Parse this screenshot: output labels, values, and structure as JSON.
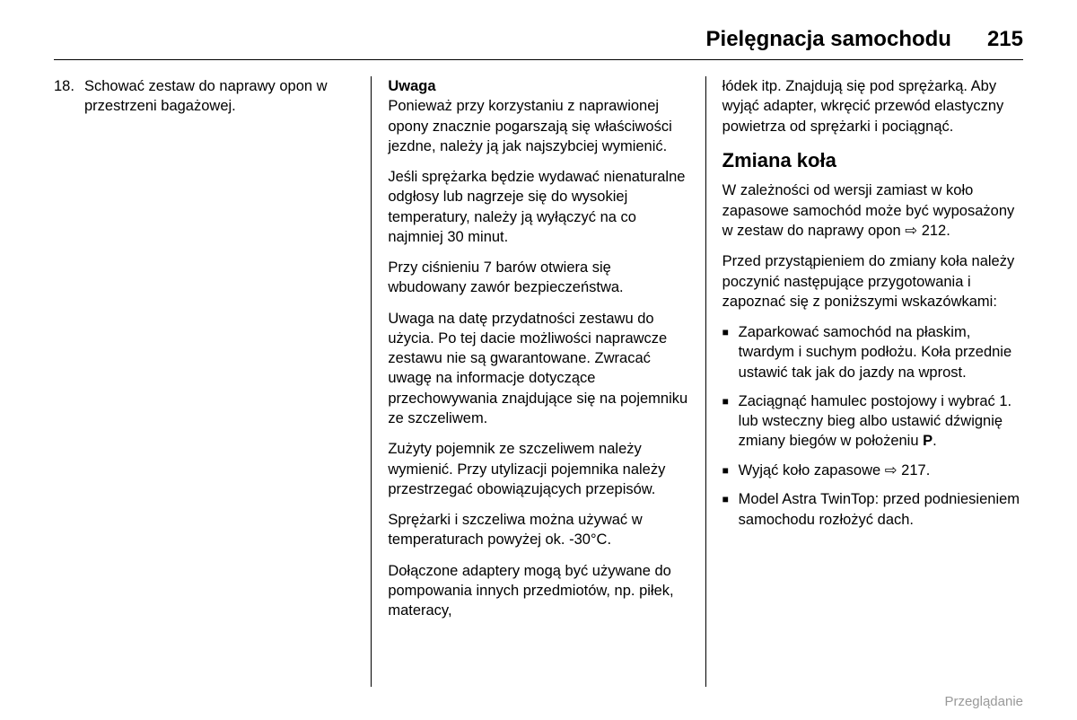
{
  "header": {
    "title": "Pielęgnacja samochodu",
    "page_number": "215"
  },
  "col1": {
    "item_number": "18.",
    "item_text": "Schować zestaw do naprawy opon w przestrzeni bagażowej."
  },
  "col2": {
    "note_label": "Uwaga",
    "p1": "Ponieważ przy korzystaniu z naprawionej opony znacznie pogarszają się właściwości jezdne, należy ją jak najszybciej wymienić.",
    "p2": "Jeśli sprężarka będzie wydawać nienaturalne odgłosy lub nagrzeje się do wysokiej temperatury, należy ją wyłączyć na co najmniej 30 minut.",
    "p3": "Przy ciśnieniu 7 barów otwiera się wbudowany zawór bezpieczeństwa.",
    "p4": "Uwaga na datę przydatności zestawu do użycia. Po tej dacie możliwości naprawcze zestawu nie są gwarantowane. Zwracać uwagę na informacje dotyczące przechowywania znajdujące się na pojemniku ze szczeliwem.",
    "p5": "Zużyty pojemnik ze szczeliwem należy wymienić. Przy utylizacji pojemnika należy przestrzegać obowiązujących przepisów.",
    "p6": "Sprężarki i szczeliwa można używać w temperaturach powyżej ok. -30°C.",
    "p7": "Dołączone adaptery mogą być używane do pompowania innych przedmiotów, np. piłek, materacy,"
  },
  "col3": {
    "p_cont": "łódek itp. Znajdują się pod sprężarką. Aby wyjąć adapter, wkręcić przewód elastyczny powietrza od sprężarki i pociągnąć.",
    "heading": "Zmiana koła",
    "p1a": "W zależności od wersji zamiast w koło zapasowe samochód może być wyposażony w zestaw do naprawy opon ",
    "ref1": "⇨ 212.",
    "p2": "Przed przystąpieniem do zmiany koła należy poczynić następujące przygotowania i zapoznać się z poniższymi wskazówkami:",
    "b1": "Zaparkować samochód na płaskim, twardym i suchym podłożu. Koła przednie ustawić tak jak do jazdy na wprost.",
    "b2a": "Zaciągnąć hamulec postojowy i wybrać 1. lub wsteczny bieg albo ustawić dźwignię zmiany biegów w położeniu ",
    "b2b": "P",
    "b2c": ".",
    "b3a": "Wyjąć koło zapasowe ",
    "b3ref": "⇨ 217.",
    "b4": "Model Astra TwinTop: przed podniesieniem samochodu rozłożyć dach."
  },
  "footer": "Przeglądanie",
  "colors": {
    "text": "#000000",
    "footer": "#999999",
    "background": "#ffffff",
    "rule": "#000000"
  }
}
